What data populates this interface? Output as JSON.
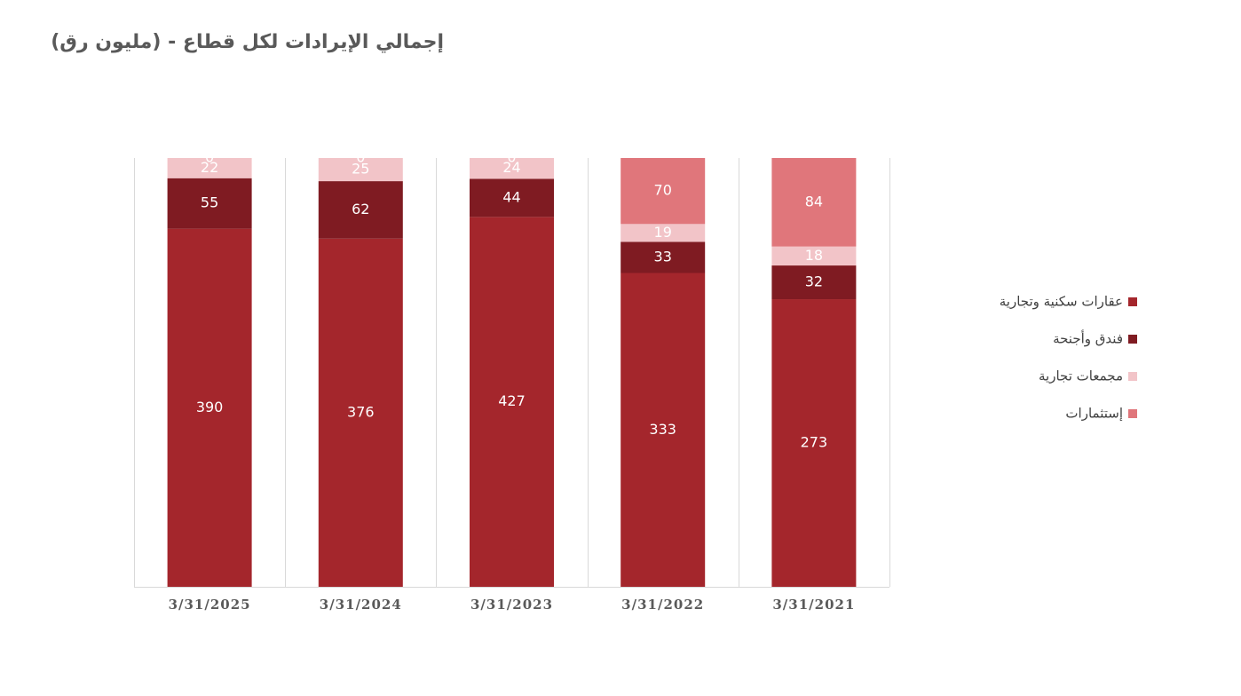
{
  "chart_data": {
    "type": "stacked_percent_bar",
    "title": "إجمالي الإيرادات لكل قطاع - (مليون رق)",
    "categories": [
      "3/31/2025",
      "3/31/2024",
      "3/31/2023",
      "3/31/2022",
      "3/31/2021"
    ],
    "series": [
      {
        "name": "عقارات سكنية وتجارية",
        "color": "#a4262c",
        "values": [
          390,
          376,
          427,
          333,
          273
        ]
      },
      {
        "name": "فندق وأجنحة",
        "color": "#7f1b22",
        "values": [
          55,
          62,
          44,
          33,
          32
        ]
      },
      {
        "name": "مجمعات تجارية",
        "color": "#f2c4c8",
        "values": [
          22,
          25,
          24,
          19,
          18
        ]
      },
      {
        "name": "إستثمارات",
        "color": "#e0767b",
        "values": [
          0,
          0,
          0,
          70,
          84
        ]
      }
    ],
    "legend": "right"
  }
}
